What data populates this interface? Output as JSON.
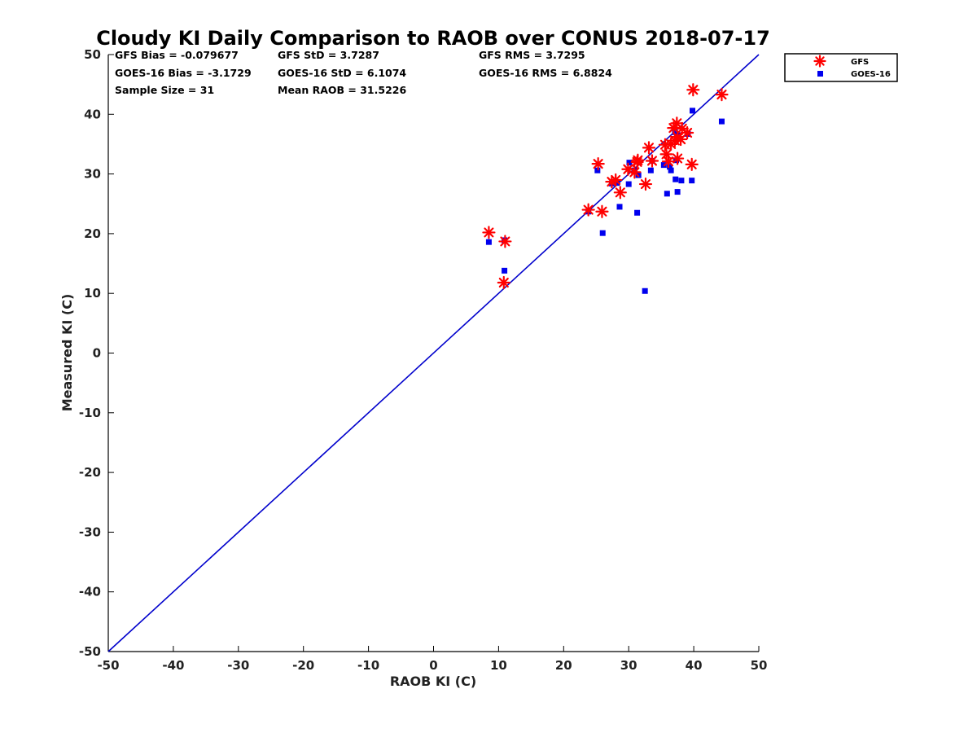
{
  "chart_data": {
    "type": "scatter",
    "title": "Cloudy KI Daily Comparison to RAOB over CONUS 2018-07-17",
    "xlabel": "RAOB KI (C)",
    "ylabel": "Measured KI (C)",
    "xlim": [
      -50,
      50
    ],
    "ylim": [
      -50,
      50
    ],
    "xticks": [
      "-50",
      "-40",
      "-30",
      "-20",
      "-10",
      "0",
      "10",
      "20",
      "30",
      "40",
      "50"
    ],
    "yticks": [
      "-50",
      "-40",
      "-30",
      "-20",
      "-10",
      "0",
      "10",
      "20",
      "30",
      "40",
      "50"
    ],
    "grid": false,
    "legend_position": "outside top-right",
    "reference_line": {
      "x": [
        -50,
        50
      ],
      "y": [
        -50,
        50
      ],
      "color": "#0000cc"
    },
    "stats": [
      [
        "GFS Bias = -0.079677",
        "GFS StD = 3.7287",
        "GFS RMS = 3.7295"
      ],
      [
        "GOES-16 Bias = -3.1729",
        "GOES-16 StD = 6.1074",
        "GOES-16 RMS = 6.8824"
      ],
      [
        "Sample Size = 31",
        "Mean RAOB = 31.5226",
        ""
      ]
    ],
    "series": [
      {
        "name": "GFS",
        "marker": "asterisk",
        "color": "#ff0000",
        "points": [
          [
            8.5,
            20.2
          ],
          [
            11.0,
            18.7
          ],
          [
            10.8,
            11.8
          ],
          [
            23.8,
            24.0
          ],
          [
            25.3,
            31.7
          ],
          [
            25.9,
            23.7
          ],
          [
            27.4,
            28.7
          ],
          [
            28.0,
            29.0
          ],
          [
            28.7,
            26.9
          ],
          [
            29.9,
            30.8
          ],
          [
            30.9,
            30.3
          ],
          [
            31.3,
            32.0
          ],
          [
            31.4,
            32.3
          ],
          [
            32.6,
            28.3
          ],
          [
            33.1,
            34.4
          ],
          [
            33.6,
            32.2
          ],
          [
            35.6,
            34.9
          ],
          [
            35.8,
            33.3
          ],
          [
            36.1,
            32.1
          ],
          [
            36.5,
            35.0
          ],
          [
            36.9,
            37.7
          ],
          [
            37.1,
            35.6
          ],
          [
            37.4,
            38.5
          ],
          [
            37.5,
            32.6
          ],
          [
            37.5,
            36.2
          ],
          [
            38.0,
            35.8
          ],
          [
            38.2,
            37.6
          ],
          [
            39.0,
            36.9
          ],
          [
            39.7,
            31.6
          ],
          [
            39.9,
            44.1
          ],
          [
            44.3,
            43.3
          ]
        ]
      },
      {
        "name": "GOES-16",
        "marker": "square",
        "color": "#0000ee",
        "points": [
          [
            8.5,
            18.6
          ],
          [
            10.9,
            18.9
          ],
          [
            10.9,
            13.8
          ],
          [
            23.8,
            23.7
          ],
          [
            25.2,
            30.6
          ],
          [
            26.0,
            20.1
          ],
          [
            27.4,
            28.4
          ],
          [
            28.2,
            28.5
          ],
          [
            28.6,
            24.5
          ],
          [
            30.0,
            28.3
          ],
          [
            30.1,
            31.9
          ],
          [
            30.9,
            30.6
          ],
          [
            31.3,
            23.5
          ],
          [
            31.5,
            29.8
          ],
          [
            32.5,
            10.4
          ],
          [
            33.4,
            30.6
          ],
          [
            33.6,
            32.2
          ],
          [
            35.4,
            31.5
          ],
          [
            35.9,
            26.7
          ],
          [
            36.3,
            31.2
          ],
          [
            36.5,
            30.6
          ],
          [
            37.1,
            37.0
          ],
          [
            37.2,
            29.1
          ],
          [
            37.3,
            32.3
          ],
          [
            37.5,
            27.0
          ],
          [
            37.6,
            36.5
          ],
          [
            38.1,
            28.9
          ],
          [
            39.1,
            36.7
          ],
          [
            39.7,
            28.9
          ],
          [
            39.8,
            40.6
          ],
          [
            44.3,
            38.8
          ]
        ]
      }
    ]
  }
}
